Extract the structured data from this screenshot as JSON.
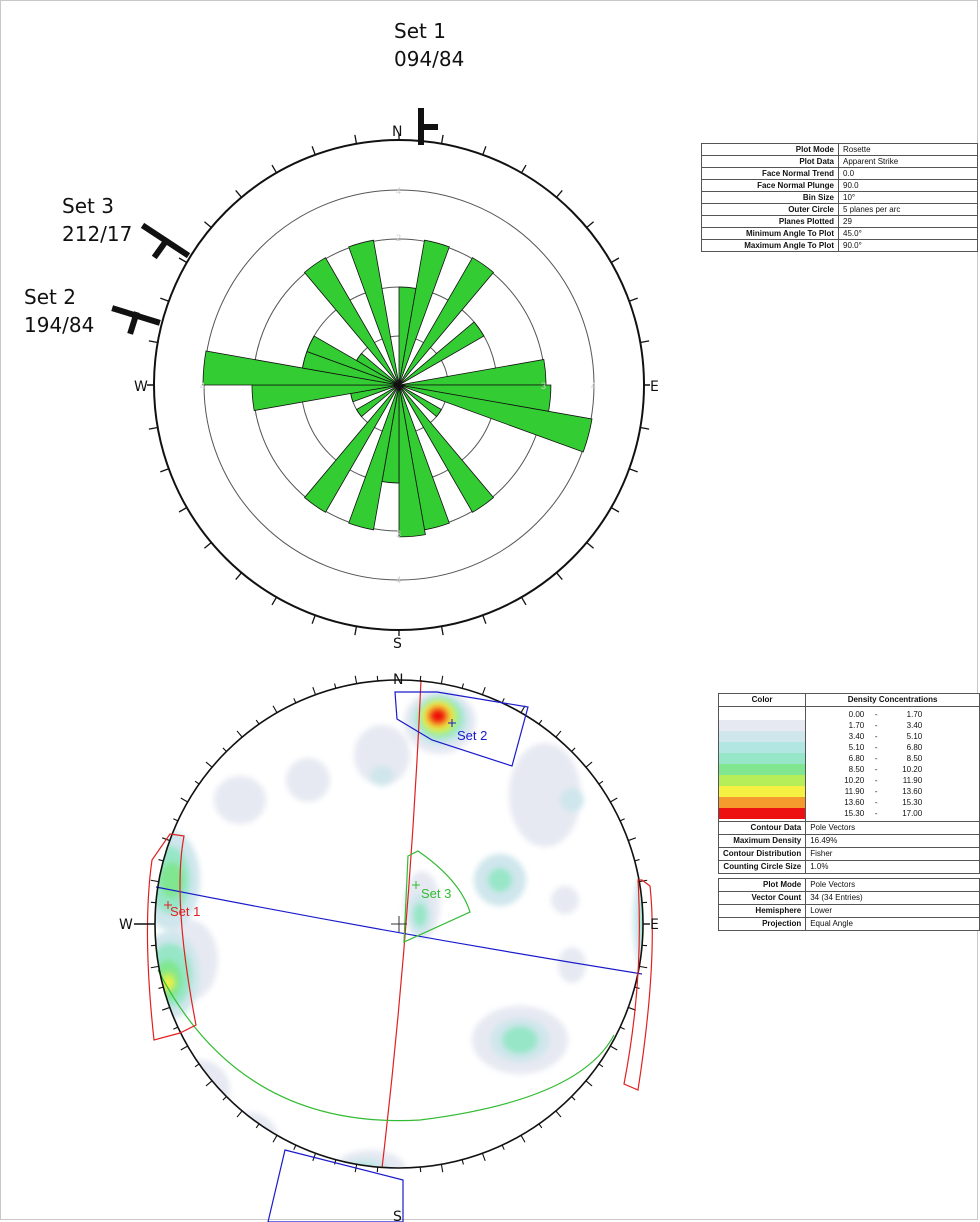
{
  "rosette": {
    "set_labels": [
      {
        "name": "Set 1",
        "value": "094/84"
      },
      {
        "name": "Set 2",
        "value": "194/84"
      },
      {
        "name": "Set 3",
        "value": "212/17"
      }
    ],
    "directions": {
      "n": "N",
      "s": "S",
      "e": "E",
      "w": "W"
    },
    "ring_labels": [
      "2",
      "3",
      "4"
    ],
    "petal_color": "#33cc33",
    "bin_size_deg": 10,
    "petals": [
      {
        "strike": 5,
        "count": 2
      },
      {
        "strike": 15,
        "count": 3
      },
      {
        "strike": 35,
        "count": 3
      },
      {
        "strike": 55,
        "count": 2
      },
      {
        "strike": 85,
        "count": 3
      },
      {
        "strike": 95,
        "count": 3.1
      },
      {
        "strike": 105,
        "count": 4
      },
      {
        "strike": 125,
        "count": 1
      },
      {
        "strike": 145,
        "count": 3
      },
      {
        "strike": 165,
        "count": 3
      },
      {
        "strike": 175,
        "count": 3.1
      },
      {
        "strike": 185,
        "count": 2
      },
      {
        "strike": 195,
        "count": 3
      },
      {
        "strike": 215,
        "count": 3
      },
      {
        "strike": 235,
        "count": 1
      },
      {
        "strike": 255,
        "count": 1
      },
      {
        "strike": 265,
        "count": 3
      },
      {
        "strike": 275,
        "count": 4
      },
      {
        "strike": 285,
        "count": 2
      },
      {
        "strike": 295,
        "count": 2
      },
      {
        "strike": 305,
        "count": 1
      },
      {
        "strike": 325,
        "count": 3
      },
      {
        "strike": 345,
        "count": 3
      }
    ],
    "info_table": [
      {
        "label": "Plot Mode",
        "value": "Rosette"
      },
      {
        "label": "Plot Data",
        "value": "Apparent Strike"
      },
      {
        "label": "Face Normal Trend",
        "value": "0.0"
      },
      {
        "label": "Face Normal Plunge",
        "value": "90.0"
      },
      {
        "label": "Bin Size",
        "value": "10°"
      },
      {
        "label": "Outer Circle",
        "value": "5 planes per arc"
      },
      {
        "label": "Planes Plotted",
        "value": "29"
      },
      {
        "label": "Minimum Angle To Plot",
        "value": "45.0°"
      },
      {
        "label": "Maximum Angle To Plot",
        "value": "90.0°"
      }
    ]
  },
  "stereonet": {
    "directions": {
      "n": "N",
      "s": "S",
      "e": "E",
      "w": "W"
    },
    "set_labels": [
      "Set 1",
      "Set 2",
      "Set 3"
    ],
    "set_colors": {
      "set1": "#e02020",
      "set2": "#1a1acc",
      "set3": "#33bb33"
    },
    "legend": {
      "header_color": "Color",
      "header_density": "Density Concentrations",
      "ranges": [
        {
          "lo": "0.00",
          "hi": "1.70",
          "color": "#ffffff"
        },
        {
          "lo": "1.70",
          "hi": "3.40",
          "color": "#e6e9f2"
        },
        {
          "lo": "3.40",
          "hi": "5.10",
          "color": "#cfe6ec"
        },
        {
          "lo": "5.10",
          "hi": "6.80",
          "color": "#b2e6e3"
        },
        {
          "lo": "6.80",
          "hi": "8.50",
          "color": "#97e6c8"
        },
        {
          "lo": "8.50",
          "hi": "10.20",
          "color": "#80e68f"
        },
        {
          "lo": "10.20",
          "hi": "11.90",
          "color": "#b6ee5a"
        },
        {
          "lo": "11.90",
          "hi": "13.60",
          "color": "#f6f042"
        },
        {
          "lo": "13.60",
          "hi": "15.30",
          "color": "#f59a2c"
        },
        {
          "lo": "15.30",
          "hi": "17.00",
          "color": "#ee1111"
        }
      ],
      "dash": "-",
      "contour_rows": [
        {
          "label": "Contour Data",
          "value": "Pole Vectors"
        },
        {
          "label": "Maximum Density",
          "value": "16.49%"
        },
        {
          "label": "Contour Distribution",
          "value": "Fisher"
        },
        {
          "label": "Counting Circle Size",
          "value": "1.0%"
        }
      ],
      "plot_rows": [
        {
          "label": "Plot Mode",
          "value": "Pole Vectors"
        },
        {
          "label": "Vector Count",
          "value": "34 (34 Entries)"
        },
        {
          "label": "Hemisphere",
          "value": "Lower"
        },
        {
          "label": "Projection",
          "value": "Equal Angle"
        }
      ]
    }
  }
}
